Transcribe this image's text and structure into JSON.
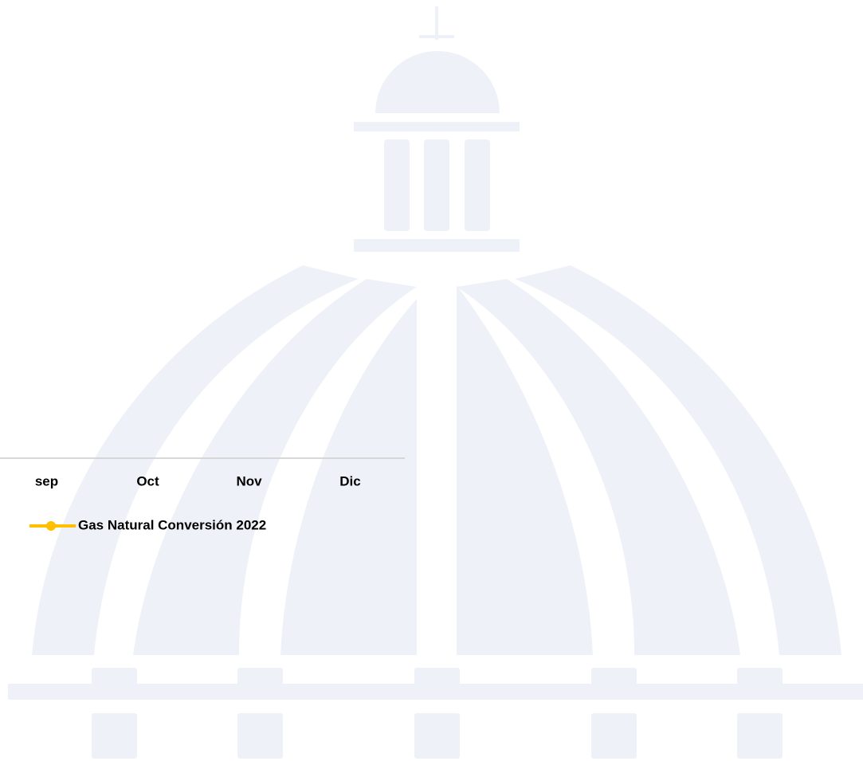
{
  "chart_data": {
    "type": "line",
    "categories": [
      "sep",
      "Oct",
      "Nov",
      "Dic"
    ],
    "series": [
      {
        "name": "Gas Natural Conversión 2022",
        "color": "#ffc000",
        "values": [
          null,
          null,
          null,
          null
        ]
      }
    ]
  }
}
